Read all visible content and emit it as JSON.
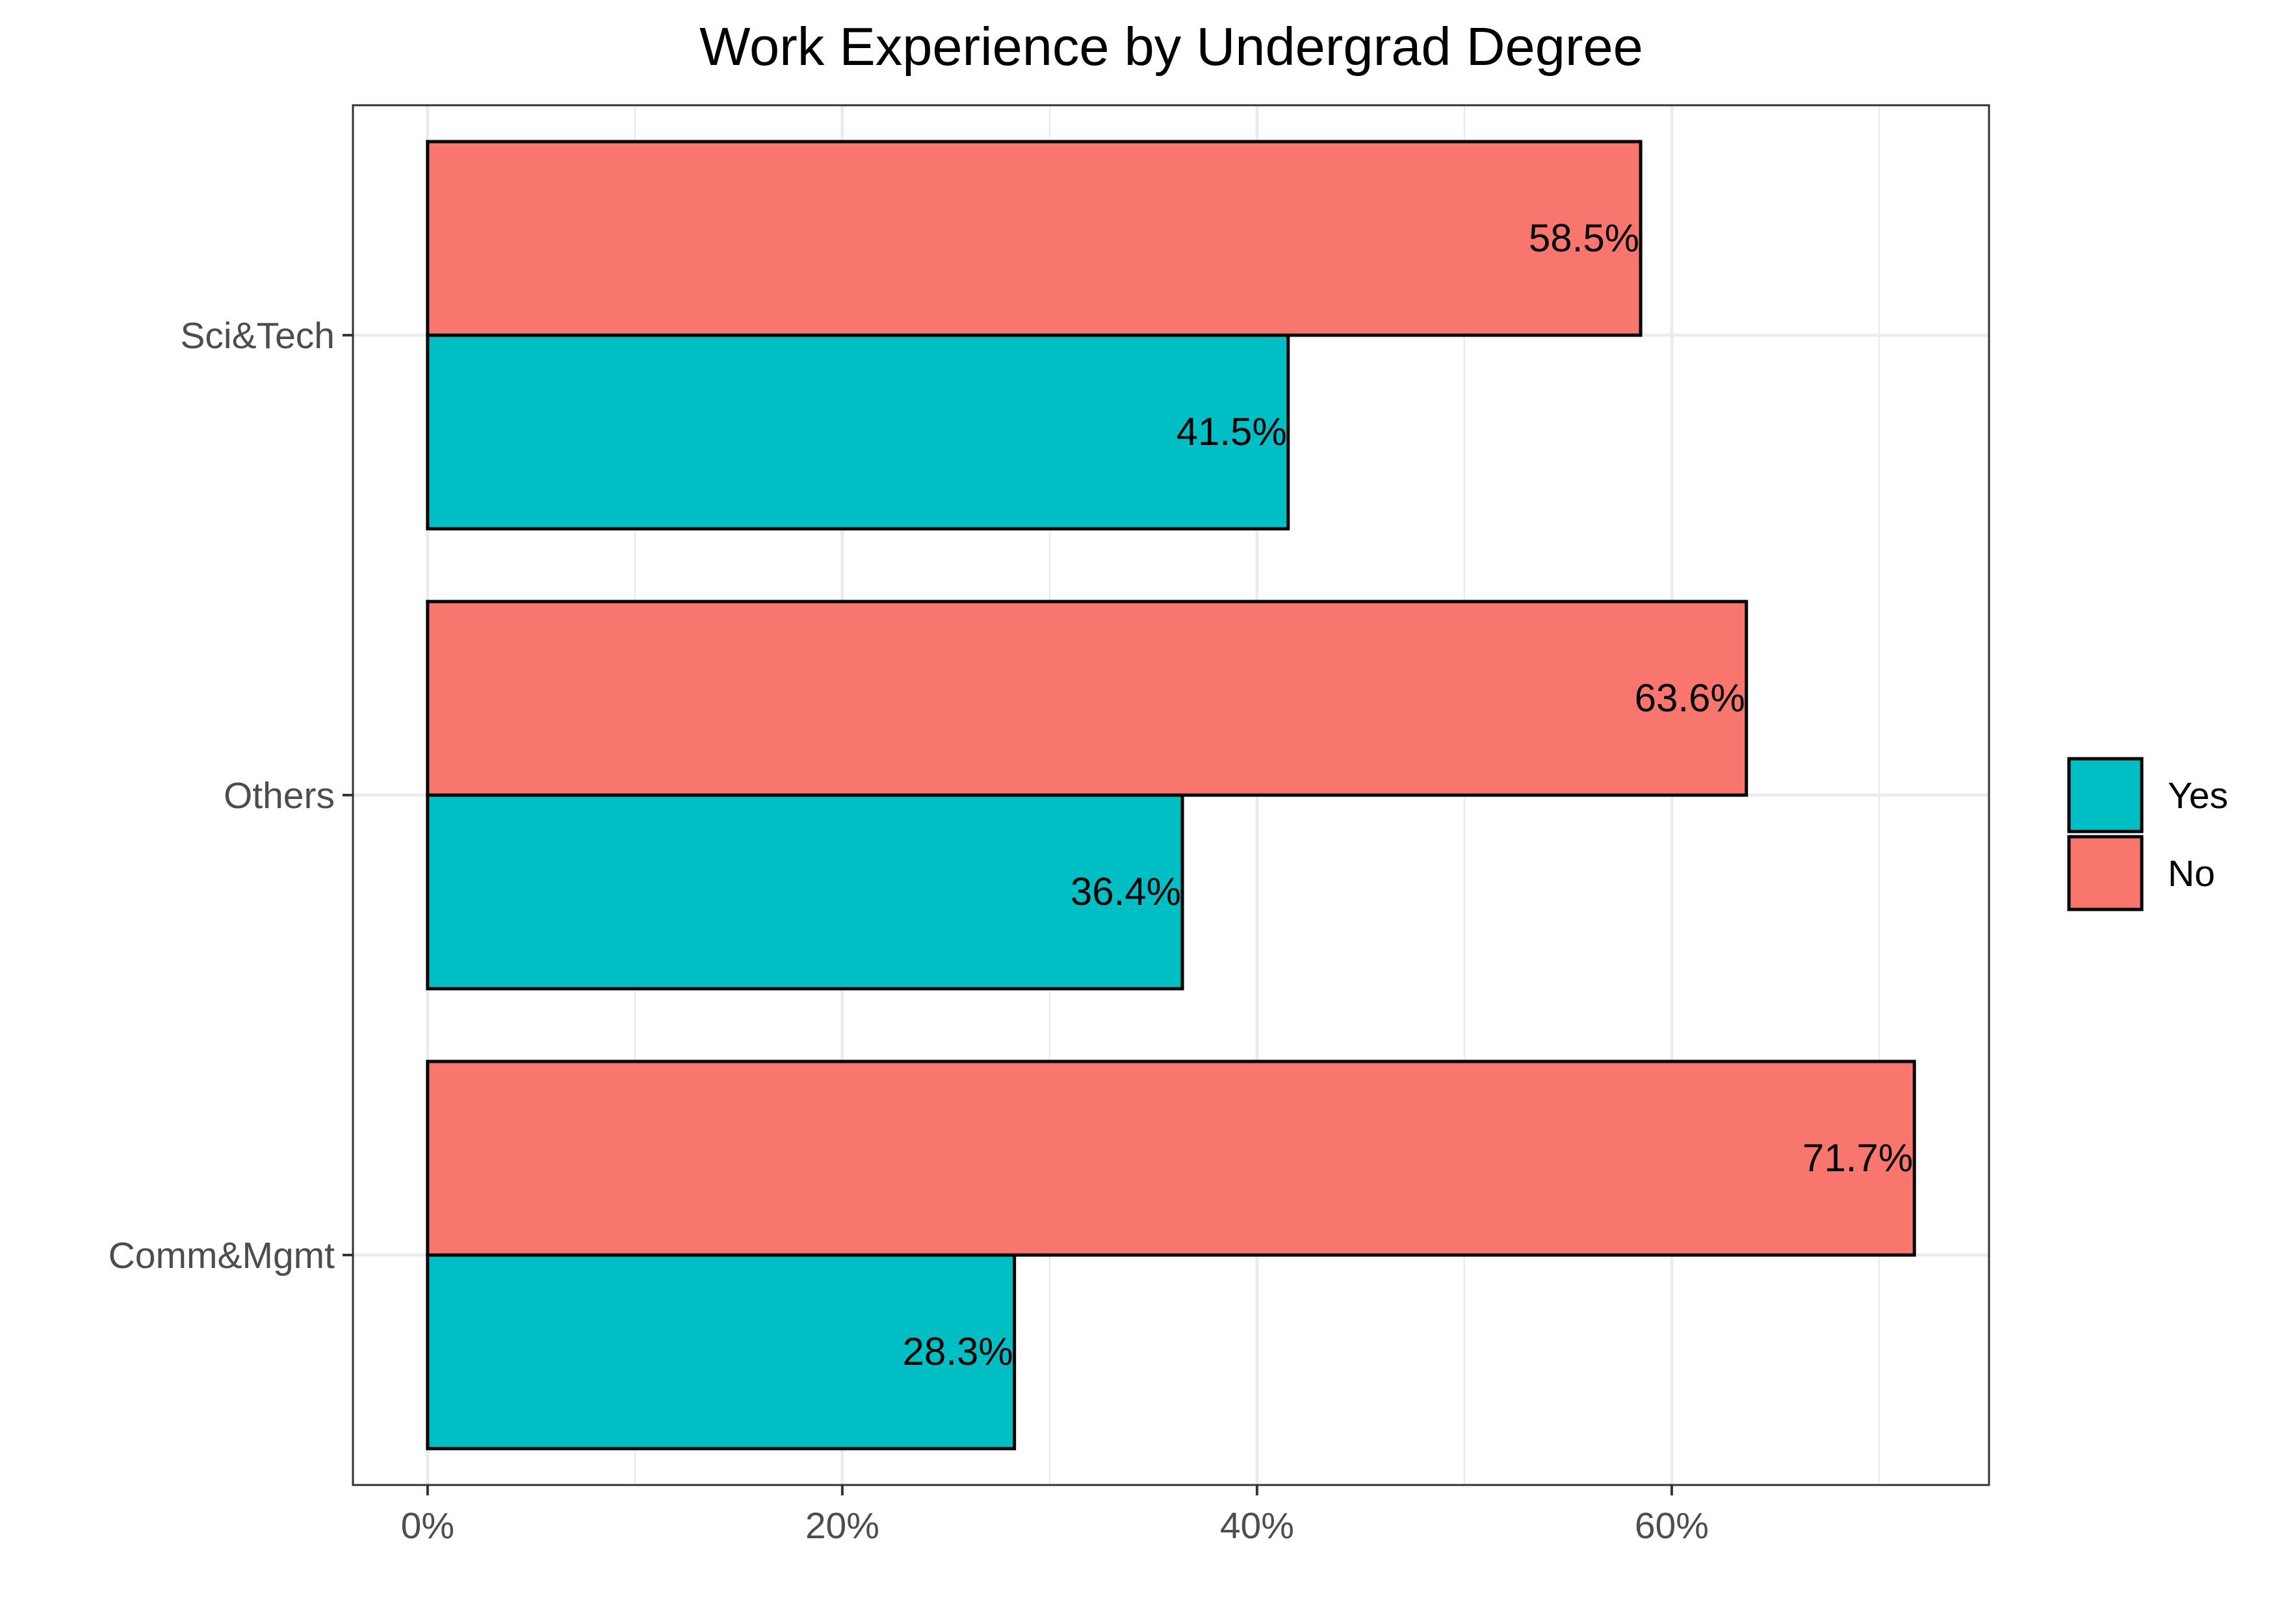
{
  "chart_data": {
    "type": "bar",
    "orientation": "horizontal",
    "title": "Work Experience by Undergrad Degree",
    "xlabel": "",
    "ylabel": "",
    "categories": [
      "Sci&Tech",
      "Others",
      "Comm&Mgmt"
    ],
    "series": [
      {
        "name": "No",
        "color": "#f8766d",
        "values": [
          58.5,
          63.6,
          71.7
        ],
        "labels": [
          "58.5%",
          "63.6%",
          "71.7%"
        ]
      },
      {
        "name": "Yes",
        "color": "#00bfc4",
        "values": [
          41.5,
          36.4,
          28.3
        ],
        "labels": [
          "41.5%",
          "36.4%",
          "28.3%"
        ]
      }
    ],
    "xlim": [
      -3.6,
      75.3
    ],
    "x_ticks": [
      0,
      20,
      40,
      60
    ],
    "x_tick_labels": [
      "0%",
      "20%",
      "40%",
      "60%"
    ],
    "grid": true,
    "legend": {
      "placement": "right",
      "entries": [
        {
          "label": "Yes",
          "color": "#00bfc4"
        },
        {
          "label": "No",
          "color": "#f8766d"
        }
      ]
    },
    "colors": {
      "grid": "#ebebeb",
      "panel_border": "#333333",
      "bar_outline": "#000000",
      "tick_text": "#4d4d4d"
    }
  }
}
